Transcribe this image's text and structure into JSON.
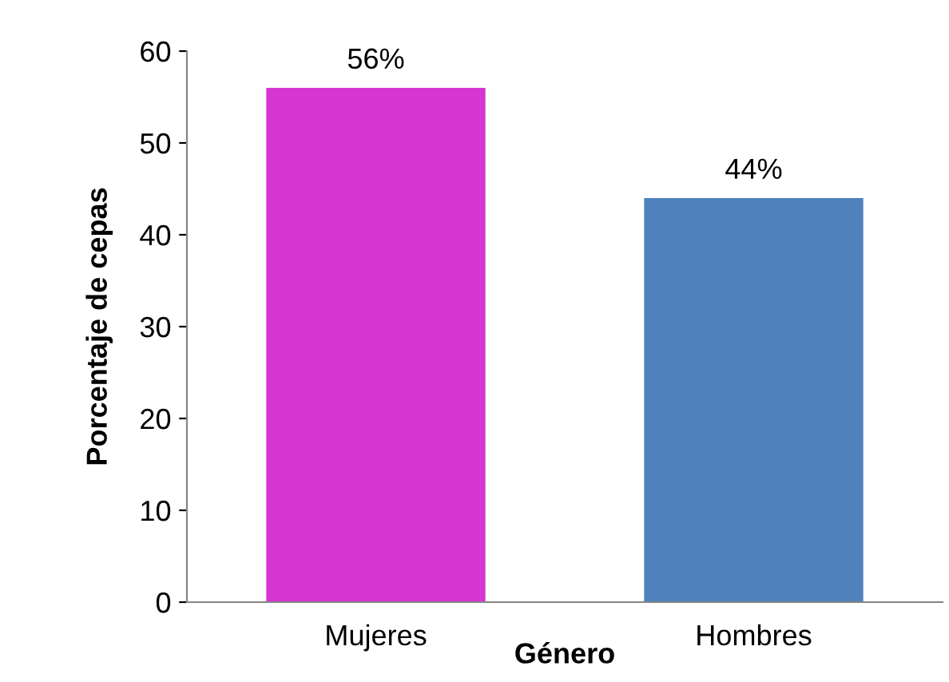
{
  "chart_data": {
    "type": "bar",
    "xlabel": "Género",
    "ylabel": "Porcentaje de cepas",
    "categories": [
      "Mujeres",
      "Hombres"
    ],
    "values": [
      56,
      44
    ],
    "colors": [
      "#d635d0",
      "#4f81bd"
    ],
    "value_labels": [
      "56%",
      "44%"
    ],
    "ylim": [
      0,
      60
    ],
    "yticks": [
      0,
      10,
      20,
      30,
      40,
      50,
      60
    ],
    "grid": false,
    "legend": false
  }
}
